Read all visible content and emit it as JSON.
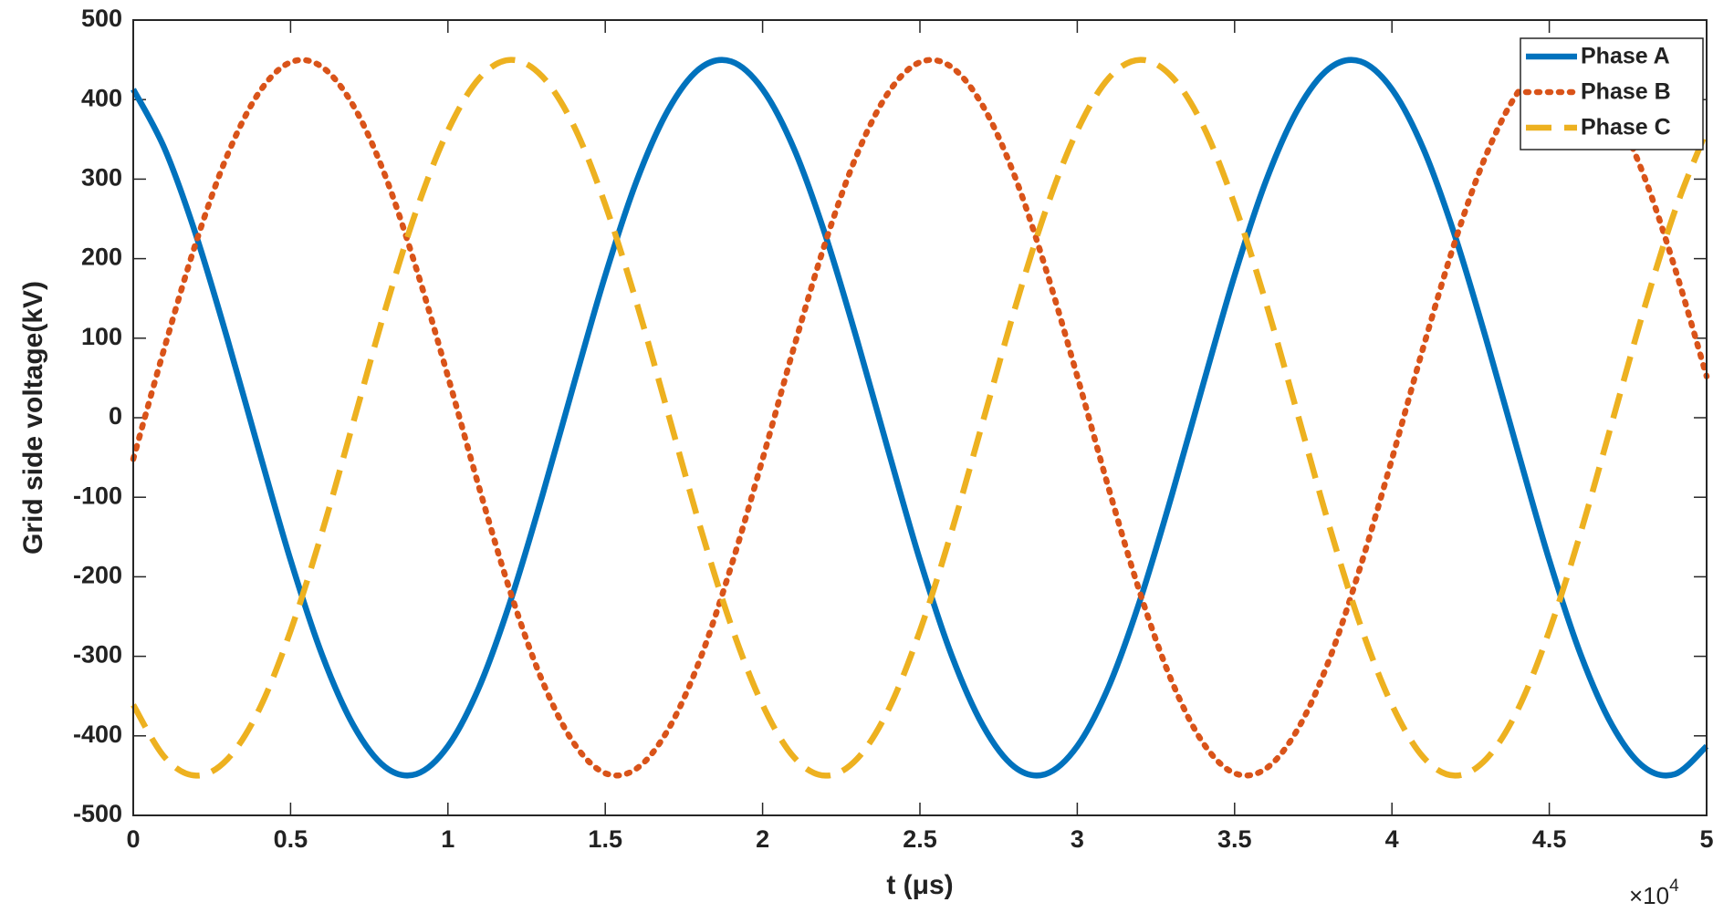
{
  "chart_data": {
    "type": "line",
    "y_label": "Grid side voltage(kV)",
    "x_label": "t (μs)",
    "x_multiplier": {
      "base": "×10",
      "exponent": "4"
    },
    "xlim": [
      0,
      5
    ],
    "xticks": [
      0,
      0.5,
      1,
      1.5,
      2,
      2.5,
      3,
      3.5,
      4,
      4.5,
      5
    ],
    "ylim": [
      -500,
      500
    ],
    "yticks": [
      -500,
      -400,
      -300,
      -200,
      -100,
      0,
      100,
      200,
      300,
      400,
      500
    ],
    "grid": false,
    "legend": "northeast",
    "x": [
      0,
      0.1,
      0.2,
      0.3,
      0.4,
      0.5,
      0.6,
      0.7,
      0.8,
      0.9,
      1,
      1.1,
      1.2,
      1.3,
      1.4,
      1.5,
      1.6,
      1.7,
      1.8,
      1.9,
      2,
      2.1,
      2.2,
      2.3,
      2.4,
      2.5,
      2.6,
      2.7,
      2.8,
      2.9,
      3,
      3.1,
      3.2,
      3.3,
      3.4,
      3.5,
      3.6,
      3.7,
      3.8,
      3.9,
      4,
      4.1,
      4.2,
      4.3,
      4.4,
      4.5,
      4.6,
      4.7,
      4.8,
      4.9,
      5
    ],
    "series": [
      {
        "name": "Phase A",
        "color": "#0072bd",
        "style": "solid",
        "values": [
          413,
          338,
          229,
          98,
          -42,
          -179,
          -298,
          -387,
          -439,
          -448,
          -413,
          -338,
          -229,
          -98,
          42,
          179,
          298,
          387,
          439,
          448,
          413,
          338,
          229,
          98,
          -42,
          -179,
          -298,
          -387,
          -439,
          -448,
          -413,
          -338,
          -229,
          -98,
          42,
          179,
          298,
          387,
          439,
          448,
          413,
          338,
          229,
          98,
          -42,
          -179,
          -298,
          -387,
          -439,
          -448,
          -413
        ]
      },
      {
        "name": "Phase B",
        "color": "#d95319",
        "style": "dotted",
        "values": [
          -52,
          89,
          221,
          331,
          409,
          447,
          441,
          392,
          305,
          187,
          52,
          -89,
          -221,
          -331,
          -409,
          -447,
          -441,
          -392,
          -305,
          -187,
          -52,
          89,
          221,
          331,
          409,
          447,
          441,
          392,
          305,
          187,
          52,
          -89,
          -221,
          -331,
          -409,
          -447,
          -441,
          -392,
          -305,
          -187,
          -52,
          89,
          221,
          331,
          409,
          447,
          441,
          392,
          305,
          187,
          52
        ]
      },
      {
        "name": "Phase C",
        "color": "#edb120",
        "style": "dashed",
        "values": [
          -361,
          -427,
          -450,
          -429,
          -367,
          -268,
          -144,
          -5,
          135,
          261,
          361,
          427,
          450,
          429,
          367,
          268,
          144,
          5,
          -135,
          -261,
          -361,
          -427,
          -450,
          -429,
          -367,
          -268,
          -144,
          -5,
          135,
          261,
          361,
          427,
          450,
          429,
          367,
          268,
          144,
          5,
          -135,
          -261,
          -361,
          -427,
          -450,
          -429,
          -367,
          -268,
          -144,
          -5,
          135,
          261,
          361
        ]
      }
    ]
  }
}
